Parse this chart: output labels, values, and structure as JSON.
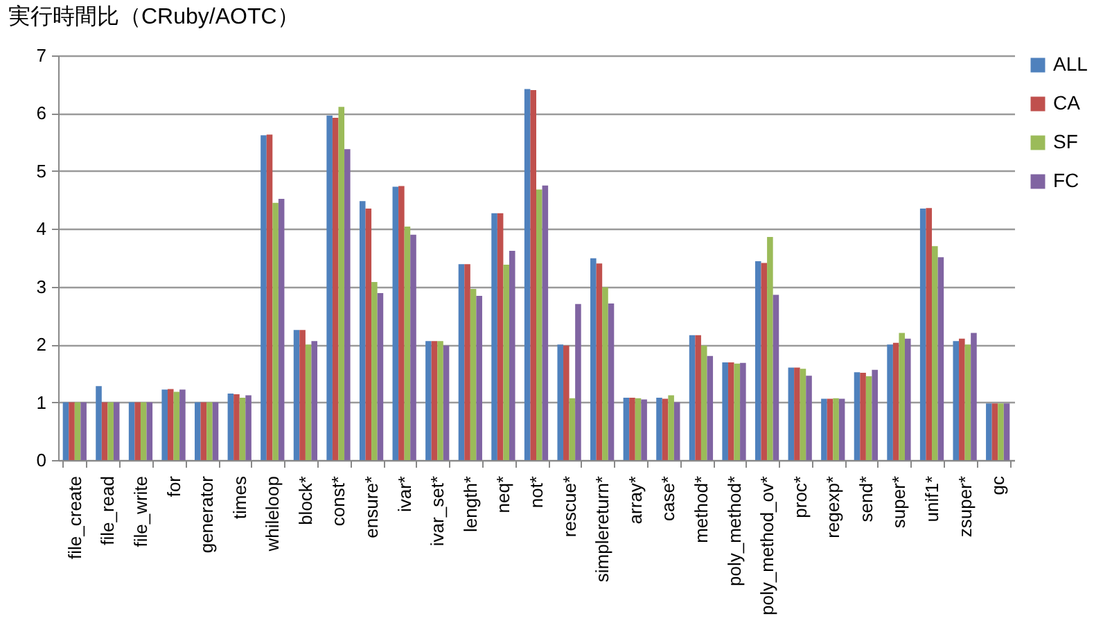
{
  "chart_data": {
    "type": "bar",
    "title": "実行時間比（CRuby/AOTC）",
    "categories": [
      "file_create",
      "file_read",
      "file_write",
      "for",
      "generator",
      "times",
      "whileloop",
      "block*",
      "const*",
      "ensure*",
      "ivar*",
      "ivar_set*",
      "length*",
      "neq*",
      "not*",
      "rescue*",
      "simplereturn*",
      "array*",
      "case*",
      "method*",
      "poly_method*",
      "poly_method_ov*",
      "proc*",
      "regexp*",
      "send*",
      "super*",
      "unif1*",
      "zsuper*",
      "gc"
    ],
    "series": [
      {
        "name": "ALL",
        "color": "#4f81bd",
        "values": [
          1,
          1.28,
          1,
          1.22,
          1,
          1.15,
          5.62,
          2.25,
          5.96,
          4.48,
          4.73,
          2.06,
          3.39,
          4.27,
          6.42,
          2.0,
          3.49,
          1.08,
          1.08,
          2.16,
          1.69,
          3.44,
          1.6,
          1.06,
          1.52,
          2.0,
          4.35,
          2.06,
          0.98
        ]
      },
      {
        "name": "CA",
        "color": "#c0504d",
        "values": [
          1,
          1,
          1,
          1.23,
          1,
          1.14,
          5.63,
          2.25,
          5.92,
          4.35,
          4.74,
          2.06,
          3.39,
          4.27,
          6.4,
          1.98,
          3.4,
          1.08,
          1.06,
          2.16,
          1.69,
          3.41,
          1.6,
          1.06,
          1.51,
          2.03,
          4.36,
          2.1,
          0.98
        ]
      },
      {
        "name": "SF",
        "color": "#9bbb59",
        "values": [
          1,
          1,
          1,
          1.18,
          1,
          1.08,
          4.45,
          2.0,
          6.11,
          3.08,
          4.04,
          2.06,
          2.96,
          3.38,
          4.68,
          1.07,
          2.99,
          1.07,
          1.12,
          1.98,
          1.67,
          3.86,
          1.58,
          1.07,
          1.45,
          2.2,
          3.7,
          2.0,
          0.98
        ]
      },
      {
        "name": "FC",
        "color": "#8064a2",
        "values": [
          1,
          1,
          1,
          1.22,
          1,
          1.12,
          4.52,
          2.06,
          5.38,
          2.89,
          3.9,
          1.98,
          2.84,
          3.62,
          4.75,
          2.7,
          2.71,
          1.05,
          1.0,
          1.8,
          1.68,
          2.86,
          1.46,
          1.06,
          1.56,
          2.1,
          3.51,
          2.2,
          0.98
        ]
      }
    ],
    "ylim": [
      0,
      7
    ],
    "yticks": [
      0,
      1,
      2,
      3,
      4,
      5,
      6,
      7
    ],
    "grid": "y",
    "legend": "right"
  }
}
